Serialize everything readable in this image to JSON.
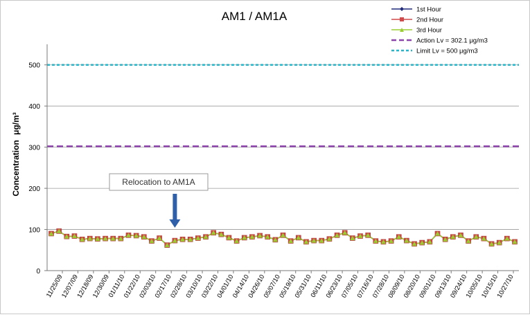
{
  "chart_data": {
    "type": "line",
    "title": "AM1 / AM1A",
    "ylabel": "Concentration",
    "ylabel_unit": "μg/m³",
    "ylim": [
      0,
      550
    ],
    "yticks": [
      0,
      100,
      200,
      300,
      400,
      500
    ],
    "grid": true,
    "legend_position": "top-right",
    "x_tick_labels": [
      "11/25/09",
      "12/07/09",
      "12/18/09",
      "12/30/09",
      "01/11/10",
      "01/22/10",
      "02/03/10",
      "02/17/10",
      "02/28/10",
      "03/10/10",
      "03/22/10",
      "04/01/10",
      "04/14/10",
      "04/26/10",
      "05/07/10",
      "05/19/10",
      "05/31/10",
      "06/11/10",
      "06/23/10",
      "07/05/10",
      "07/16/10",
      "07/28/10",
      "08/09/10",
      "08/20/10",
      "09/01/10",
      "09/13/10",
      "09/24/10",
      "10/05/10",
      "10/15/10",
      "10/27/10"
    ],
    "series": [
      {
        "name": "1st Hour",
        "color": "#1f2a7a",
        "marker": "diamond",
        "values": [
          90,
          96,
          83,
          84,
          76,
          78,
          77,
          78,
          78,
          78,
          86,
          85,
          82,
          72,
          79,
          62,
          73,
          76,
          76,
          79,
          82,
          92,
          88,
          80,
          72,
          80,
          82,
          85,
          82,
          75,
          86,
          72,
          80,
          70,
          73,
          73,
          77,
          86,
          92,
          79,
          84,
          86,
          72,
          70,
          72,
          82,
          73,
          65,
          68,
          70,
          90,
          76,
          82,
          86,
          72,
          82,
          78,
          65,
          68,
          78,
          70
        ]
      },
      {
        "name": "2nd Hour",
        "color": "#d24a4a",
        "marker": "square",
        "values": [
          90,
          96,
          83,
          84,
          76,
          78,
          77,
          78,
          78,
          78,
          86,
          85,
          82,
          72,
          79,
          62,
          73,
          76,
          76,
          79,
          82,
          92,
          88,
          80,
          72,
          80,
          82,
          85,
          82,
          75,
          86,
          72,
          80,
          70,
          73,
          73,
          77,
          86,
          92,
          79,
          84,
          86,
          72,
          70,
          72,
          82,
          73,
          65,
          68,
          70,
          90,
          76,
          82,
          86,
          72,
          82,
          78,
          65,
          68,
          78,
          70
        ]
      },
      {
        "name": "3rd Hour",
        "color": "#9acd32",
        "marker": "triangle",
        "values": [
          90,
          96,
          83,
          84,
          76,
          78,
          77,
          78,
          78,
          78,
          86,
          85,
          82,
          72,
          79,
          62,
          73,
          76,
          76,
          79,
          82,
          92,
          88,
          80,
          72,
          80,
          82,
          85,
          82,
          75,
          86,
          72,
          80,
          70,
          73,
          73,
          77,
          86,
          92,
          79,
          84,
          86,
          72,
          70,
          72,
          82,
          73,
          65,
          68,
          70,
          90,
          76,
          82,
          86,
          72,
          82,
          78,
          65,
          68,
          78,
          70
        ]
      }
    ],
    "reference_lines": [
      {
        "name": "Action Lv = 302.1 μg/m3",
        "value": 302.1,
        "color": "#8e44ad",
        "dash": "long"
      },
      {
        "name": "Limit Lv = 500 μg/m3",
        "value": 500,
        "color": "#26b5c9",
        "dash": "short"
      }
    ],
    "annotation": {
      "text": "Relocation to AM1A",
      "point_index": 16,
      "arrow_color": "#2e5fa8"
    }
  }
}
